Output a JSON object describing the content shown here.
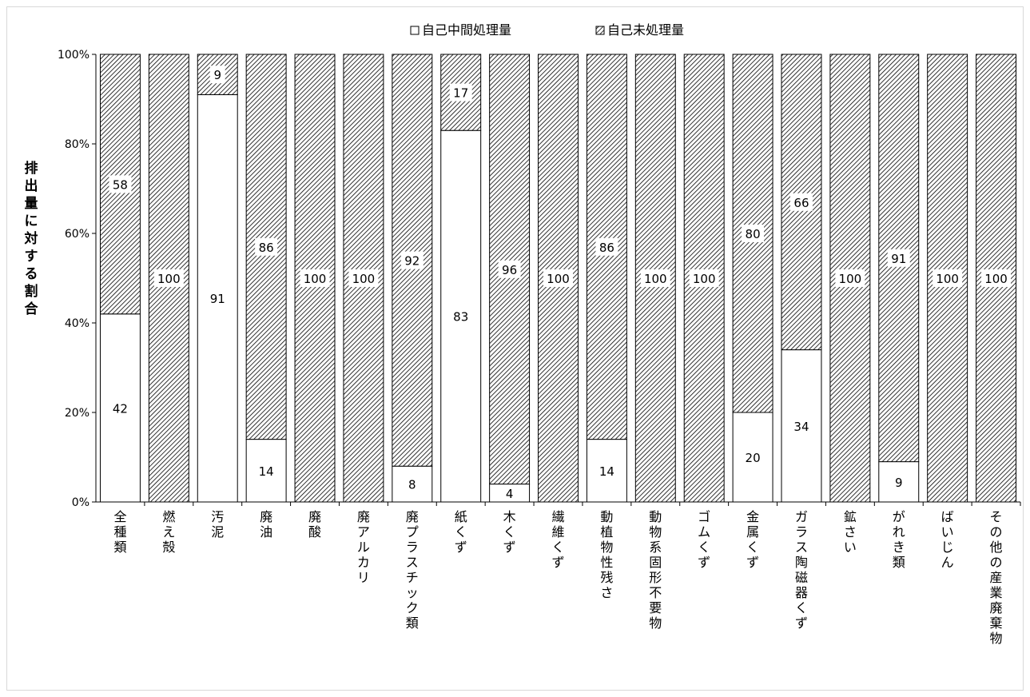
{
  "chart_data": {
    "type": "bar",
    "stacked": true,
    "ylabel": "排出量に対する割合",
    "ylim": [
      0,
      100
    ],
    "yticks": [
      "0%",
      "20%",
      "40%",
      "60%",
      "80%",
      "100%"
    ],
    "grid": false,
    "legend": {
      "placement": "top",
      "entries": [
        "自己中間処理量",
        "自己未処理量"
      ]
    },
    "categories": [
      "全種類",
      "燃え殻",
      "汚泥",
      "廃油",
      "廃酸",
      "廃アルカリ",
      "廃プラスチック類",
      "紙くず",
      "木くず",
      "繊維くず",
      "動植物性残さ",
      "動物系固形不要物",
      "ゴムくず",
      "金属くず",
      "ガラス陶磁器くず",
      "鉱さい",
      "がれき類",
      "ばいじん",
      "その他の産業廃棄物"
    ],
    "series": [
      {
        "name": "自己中間処理量",
        "fill": "#ffffff",
        "values": [
          42,
          0,
          91,
          14,
          0,
          0,
          8,
          83,
          4,
          0,
          14,
          0,
          0,
          20,
          34,
          0,
          9,
          0,
          0
        ],
        "labels": [
          "42",
          "",
          "91",
          "14",
          "",
          "",
          "8",
          "83",
          "4",
          "",
          "14",
          "",
          "",
          "20",
          "34",
          "",
          "9",
          "",
          ""
        ]
      },
      {
        "name": "自己未処理量",
        "fill": "hatch",
        "values": [
          58,
          100,
          9,
          86,
          100,
          100,
          92,
          17,
          96,
          100,
          86,
          100,
          100,
          80,
          66,
          100,
          91,
          100,
          100
        ],
        "labels": [
          "58",
          "100",
          "9",
          "86",
          "100",
          "100",
          "92",
          "17",
          "96",
          "100",
          "86",
          "100",
          "100",
          "80",
          "66",
          "100",
          "91",
          "100",
          "100"
        ]
      }
    ]
  }
}
